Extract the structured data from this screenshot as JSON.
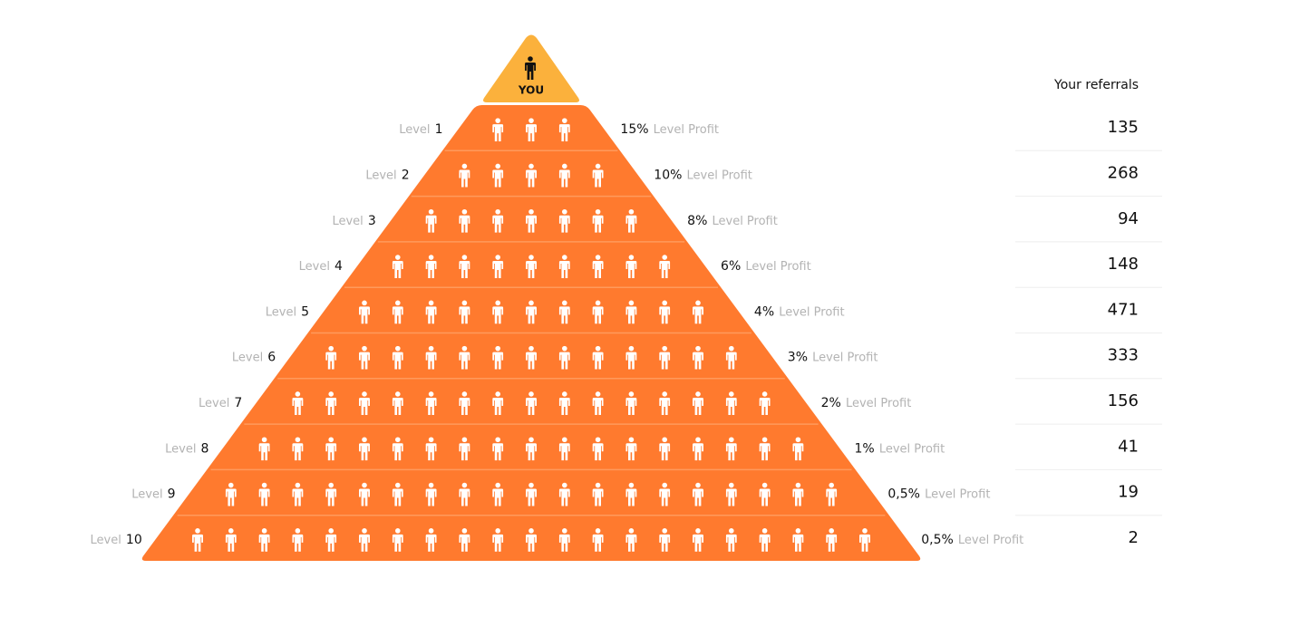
{
  "apex_label": "YOU",
  "referrals_header": "Your referrals",
  "levels": [
    {
      "level_word": "Level",
      "level_number": "1",
      "percent": "15%",
      "profit_label": "Level Profit",
      "referrals": "135"
    },
    {
      "level_word": "Level",
      "level_number": "2",
      "percent": "10%",
      "profit_label": "Level Profit",
      "referrals": "268"
    },
    {
      "level_word": "Level",
      "level_number": "3",
      "percent": "8%",
      "profit_label": "Level Profit",
      "referrals": "94"
    },
    {
      "level_word": "Level",
      "level_number": "4",
      "percent": "6%",
      "profit_label": "Level Profit",
      "referrals": "148"
    },
    {
      "level_word": "Level",
      "level_number": "5",
      "percent": "4%",
      "profit_label": "Level Profit",
      "referrals": "471"
    },
    {
      "level_word": "Level",
      "level_number": "6",
      "percent": "3%",
      "profit_label": "Level Profit",
      "referrals": "333"
    },
    {
      "level_word": "Level",
      "level_number": "7",
      "percent": "2%",
      "profit_label": "Level Profit",
      "referrals": "156"
    },
    {
      "level_word": "Level",
      "level_number": "8",
      "percent": "1%",
      "profit_label": "Level Profit",
      "referrals": "41"
    },
    {
      "level_word": "Level",
      "level_number": "9",
      "percent": "0,5%",
      "profit_label": "Level Profit",
      "referrals": "19"
    },
    {
      "level_word": "Level",
      "level_number": "10",
      "percent": "0,5%",
      "profit_label": "Level Profit",
      "referrals": "2"
    }
  ]
}
